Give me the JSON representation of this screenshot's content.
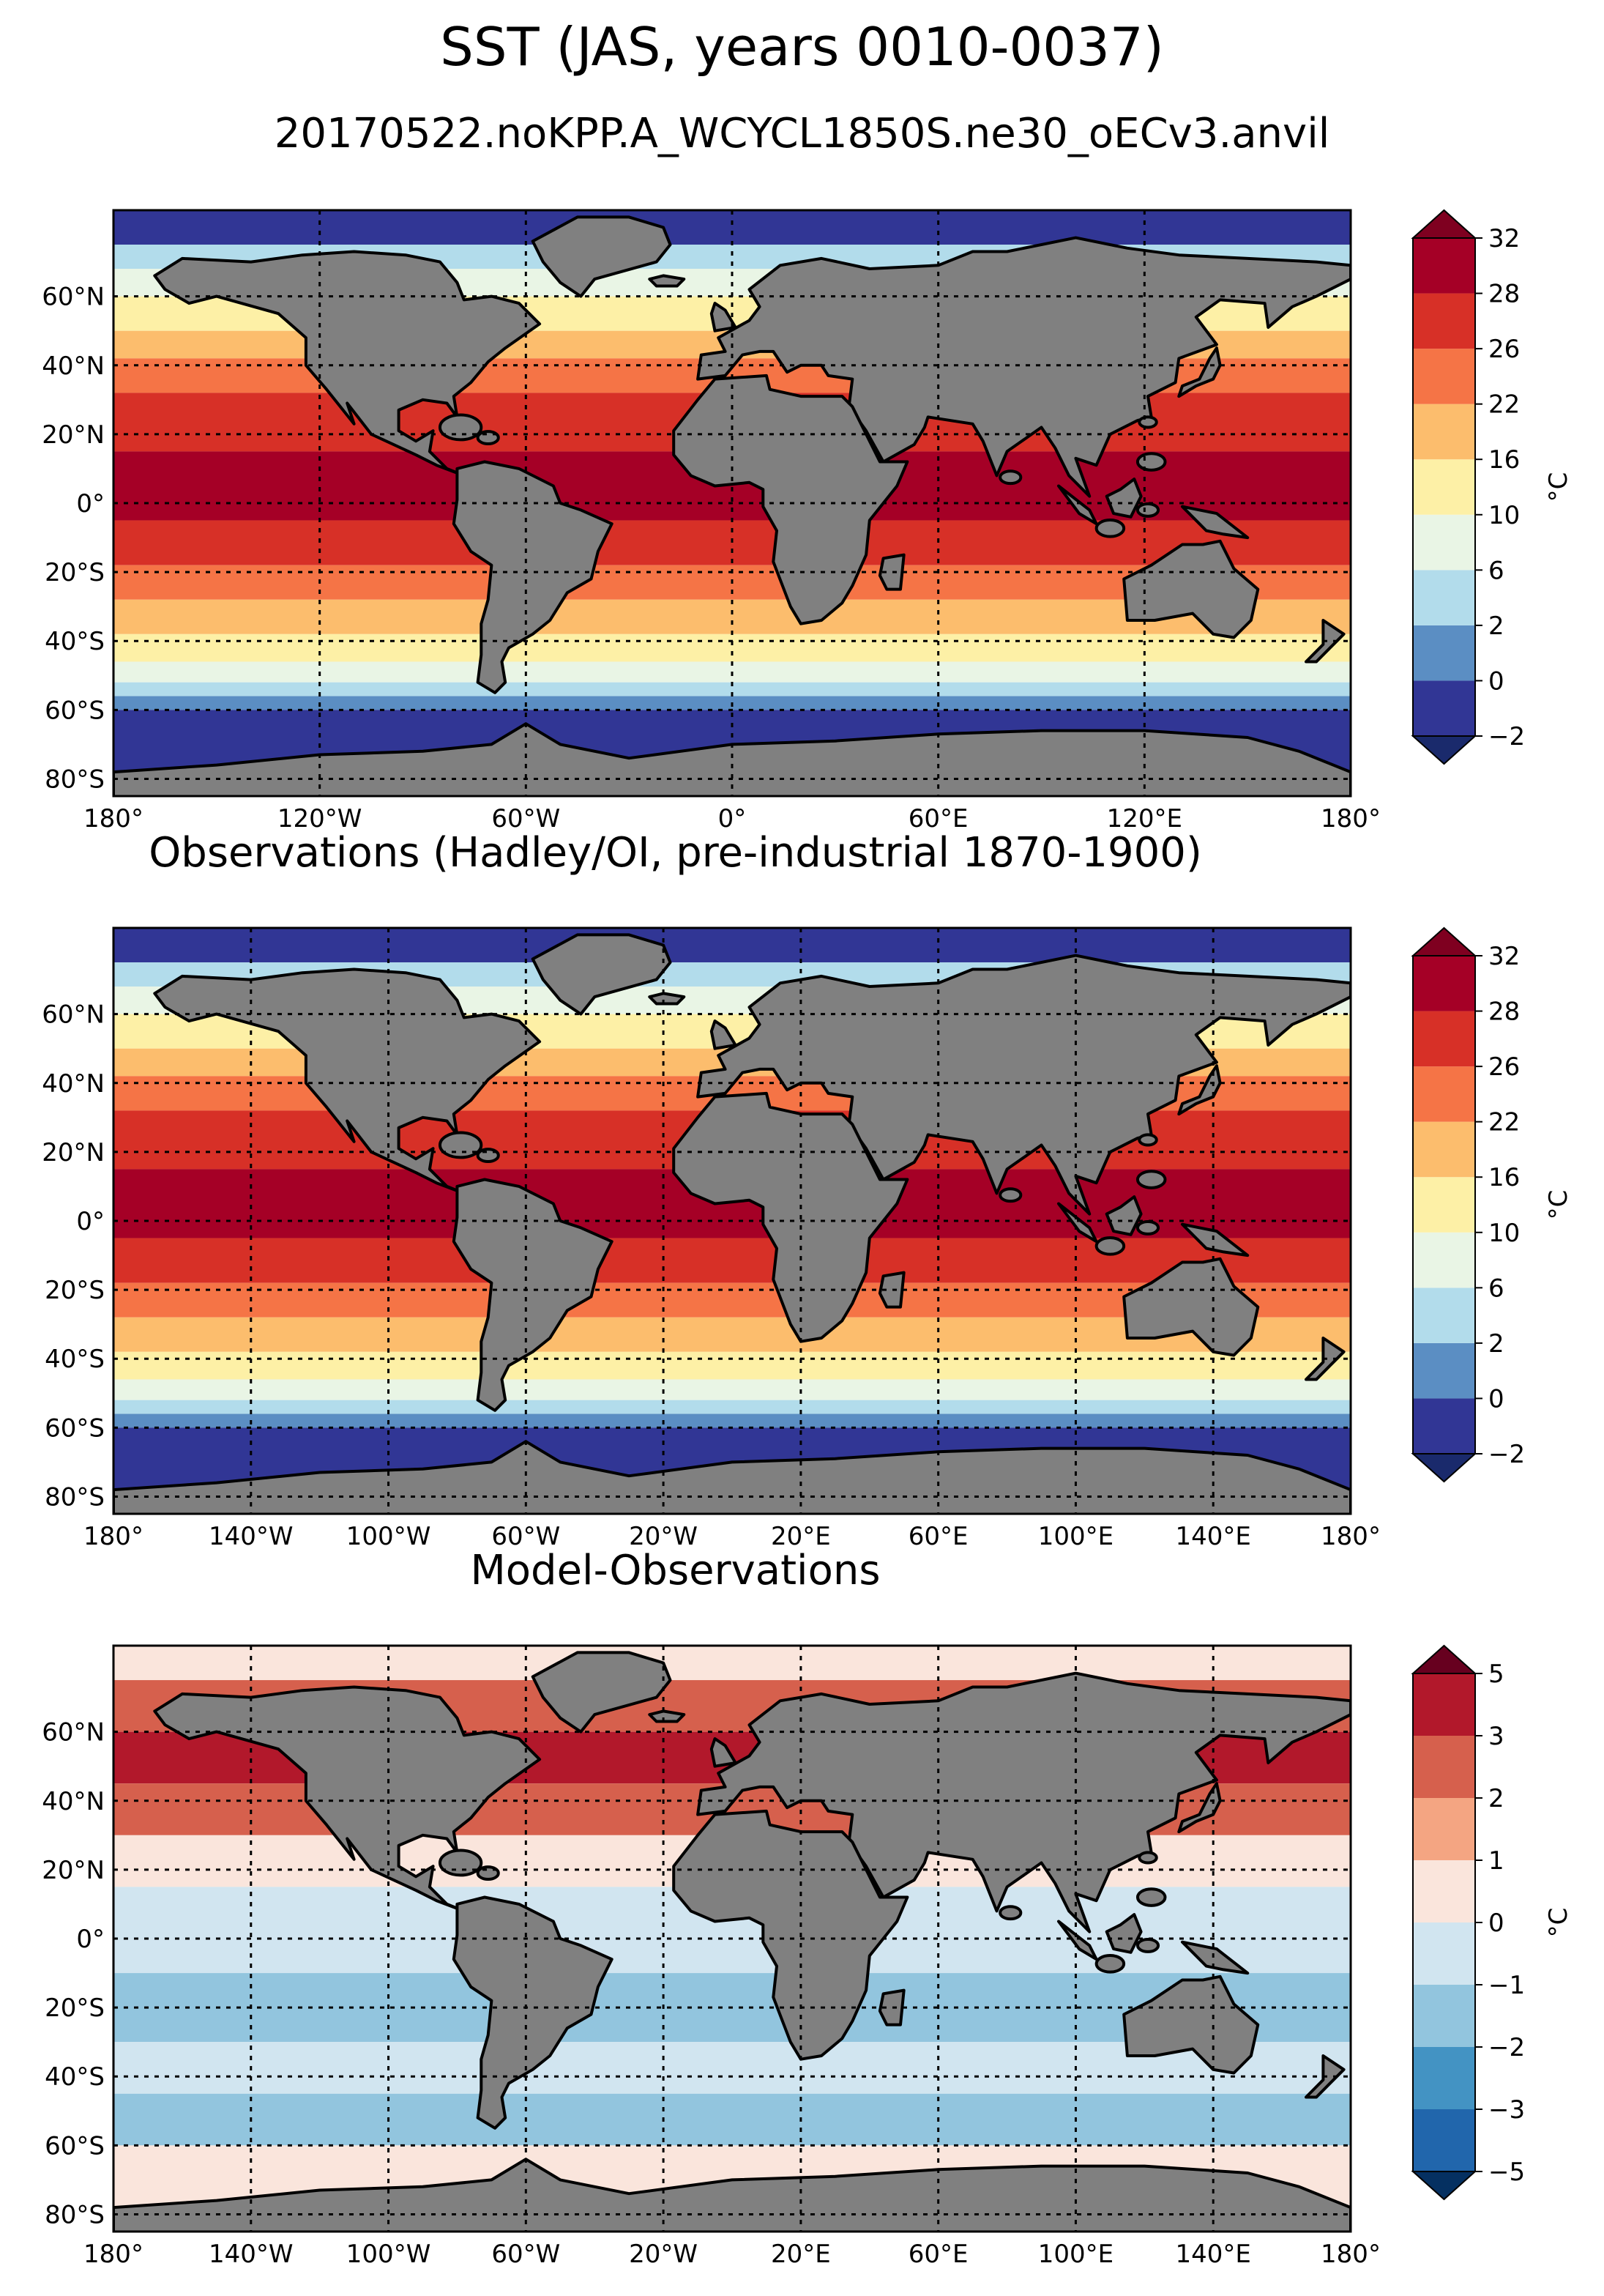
{
  "figure": {
    "title": "SST (JAS, years 0010-0037)",
    "subtitle": "20170522.noKPP.A_WCYCL1850S.ne30_oECv3.anvil"
  },
  "chart_data": [
    {
      "type": "heatmap",
      "panel": "model",
      "title": "",
      "lat_tick_labels": [
        "60°N",
        "40°N",
        "20°N",
        "0°",
        "20°S",
        "40°S",
        "60°S",
        "80°S"
      ],
      "lat_ticks": [
        60,
        40,
        20,
        0,
        -20,
        -40,
        -60,
        -80
      ],
      "lon_tick_labels": [
        "180°",
        "120°W",
        "60°W",
        "0°",
        "60°E",
        "120°E",
        "180°"
      ],
      "lon_ticks": [
        -180,
        -120,
        -60,
        0,
        60,
        120,
        180
      ],
      "xlim": [
        -180,
        180
      ],
      "ylim": [
        -85,
        85
      ],
      "grid": true,
      "colorbar": {
        "label": "°C",
        "extend": "both",
        "levels": [
          -2,
          0,
          2,
          6,
          10,
          16,
          22,
          26,
          28,
          32
        ],
        "tick_labels": [
          "−2",
          "0",
          "2",
          "6",
          "10",
          "16",
          "22",
          "26",
          "28",
          "32"
        ],
        "colors": [
          "#313695",
          "#5b8ec3",
          "#b2dceb",
          "#e9f5e5",
          "#fdf0a6",
          "#fcbd6d",
          "#f57446",
          "#d73027",
          "#a50026"
        ],
        "under_color": "#1a2a6c",
        "over_color": "#7f0020"
      }
    },
    {
      "type": "heatmap",
      "panel": "observations",
      "title": "Observations (Hadley/OI, pre-industrial 1870-1900)",
      "lat_tick_labels": [
        "60°N",
        "40°N",
        "20°N",
        "0°",
        "20°S",
        "40°S",
        "60°S",
        "80°S"
      ],
      "lat_ticks": [
        60,
        40,
        20,
        0,
        -20,
        -40,
        -60,
        -80
      ],
      "lon_tick_labels": [
        "180°",
        "140°W",
        "100°W",
        "60°W",
        "20°W",
        "20°E",
        "60°E",
        "100°E",
        "140°E",
        "180°"
      ],
      "lon_ticks": [
        -180,
        -140,
        -100,
        -60,
        -20,
        20,
        60,
        100,
        140,
        180
      ],
      "xlim": [
        -180,
        180
      ],
      "ylim": [
        -85,
        85
      ],
      "grid": true,
      "colorbar": {
        "label": "°C",
        "extend": "both",
        "levels": [
          -2,
          0,
          2,
          6,
          10,
          16,
          22,
          26,
          28,
          32
        ],
        "tick_labels": [
          "−2",
          "0",
          "2",
          "6",
          "10",
          "16",
          "22",
          "26",
          "28",
          "32"
        ],
        "colors": [
          "#313695",
          "#5b8ec3",
          "#b2dceb",
          "#e9f5e5",
          "#fdf0a6",
          "#fcbd6d",
          "#f57446",
          "#d73027",
          "#a50026"
        ],
        "under_color": "#1a2a6c",
        "over_color": "#7f0020"
      }
    },
    {
      "type": "heatmap",
      "panel": "bias",
      "title": "Model-Observations",
      "lat_tick_labels": [
        "60°N",
        "40°N",
        "20°N",
        "0°",
        "20°S",
        "40°S",
        "60°S",
        "80°S"
      ],
      "lat_ticks": [
        60,
        40,
        20,
        0,
        -20,
        -40,
        -60,
        -80
      ],
      "lon_tick_labels": [
        "180°",
        "140°W",
        "100°W",
        "60°W",
        "20°W",
        "20°E",
        "60°E",
        "100°E",
        "140°E",
        "180°"
      ],
      "lon_ticks": [
        -180,
        -140,
        -100,
        -60,
        -20,
        20,
        60,
        100,
        140,
        180
      ],
      "xlim": [
        -180,
        180
      ],
      "ylim": [
        -85,
        85
      ],
      "grid": true,
      "colorbar": {
        "label": "°C",
        "extend": "both",
        "levels": [
          -5,
          -3,
          -2,
          -1,
          0,
          1,
          2,
          3,
          5
        ],
        "tick_labels": [
          "−5",
          "−3",
          "−2",
          "−1",
          "0",
          "1",
          "2",
          "3",
          "5"
        ],
        "colors": [
          "#2166ac",
          "#4393c3",
          "#92c5de",
          "#d1e5f0",
          "#fae5dc",
          "#f4a582",
          "#d6604d",
          "#b2182b"
        ],
        "under_color": "#053061",
        "over_color": "#67001f"
      }
    }
  ]
}
